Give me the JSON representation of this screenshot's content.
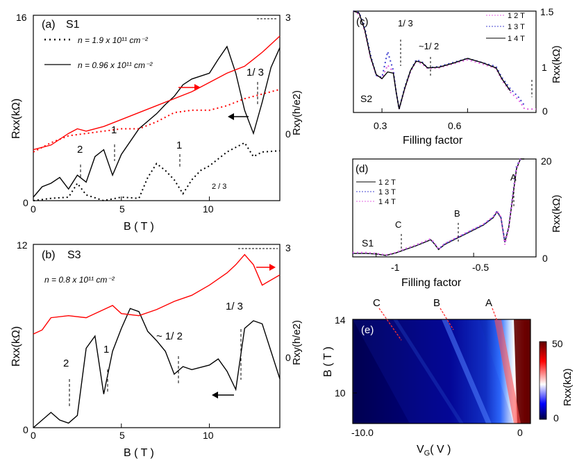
{
  "chart_data": [
    {
      "id": "a",
      "type": "line",
      "panel_label": "(a)",
      "sample": "S1",
      "xlabel": "B ( T )",
      "ylabel_left": "R<sub>xx</sub>(kΩ)",
      "ylabel_left_text": "Rxx(kΩ)",
      "ylabel_right_text": "Rxy(h/e2)",
      "xlim": [
        0,
        14
      ],
      "ylim_left": [
        0,
        16
      ],
      "ylim_right": [
        -1,
        3
      ],
      "x_ticks": [
        "0",
        "5",
        "10"
      ],
      "y_left_ticks": [
        "0",
        "16"
      ],
      "y_right_ticks": [
        "0",
        "3"
      ],
      "legend": [
        {
          "style": "dotted",
          "text": "n = 1.9 x 10¹¹ cm⁻²"
        },
        {
          "style": "solid",
          "text": "n = 0.96 x 10¹¹ cm⁻²"
        }
      ],
      "annotations": [
        "1/ 3",
        "1",
        "1",
        "2",
        "2 / 3"
      ],
      "series": [
        {
          "axis": "left",
          "color": "#000000",
          "dash": "solid",
          "x": [
            0,
            0.5,
            1.0,
            1.5,
            2.0,
            2.5,
            3.0,
            3.5,
            4.0,
            4.5,
            5.0,
            6.0,
            7.0,
            7.5,
            8.0,
            8.5,
            9.0,
            10.0,
            10.5,
            11.0,
            11.5,
            12.0,
            12.5,
            13.0,
            13.5,
            14.0
          ],
          "y": [
            0.3,
            1.2,
            1.5,
            2.0,
            1.0,
            2.2,
            1.6,
            3.8,
            4.4,
            2.2,
            4.0,
            6.2,
            7.5,
            8.3,
            9.0,
            10.0,
            10.5,
            11.0,
            12.2,
            13.3,
            11.0,
            7.8,
            5.8,
            8.5,
            11.5,
            13.2
          ]
        },
        {
          "axis": "left",
          "color": "#000000",
          "dash": "dotted",
          "x": [
            0,
            1.0,
            2.0,
            2.5,
            3.0,
            4.0,
            5.0,
            6.0,
            6.5,
            7.0,
            7.5,
            8.0,
            8.5,
            9.0,
            9.5,
            10.0,
            10.5,
            11.0,
            11.5,
            12.0,
            12.5,
            13.0,
            14.0
          ],
          "y": [
            0,
            0.2,
            0.3,
            1.5,
            0.5,
            0.0,
            0.3,
            0.2,
            2.0,
            3.2,
            2.6,
            1.8,
            0.6,
            1.8,
            2.6,
            3.0,
            3.6,
            4.2,
            4.6,
            5.0,
            3.8,
            4.2,
            4.3
          ]
        },
        {
          "axis": "right",
          "color": "#ff0000",
          "dash": "solid",
          "x": [
            0,
            1.0,
            2.0,
            2.5,
            3.0,
            4.0,
            5.0,
            6.0,
            7.0,
            8.0,
            9.0,
            10.0,
            11.0,
            12.0,
            12.5,
            13.0,
            14.0
          ],
          "y": [
            0.1,
            0.2,
            0.45,
            0.55,
            0.5,
            0.6,
            0.75,
            0.9,
            1.05,
            1.2,
            1.35,
            1.55,
            1.75,
            1.9,
            2.05,
            2.2,
            2.55
          ]
        },
        {
          "axis": "right",
          "color": "#ff0000",
          "dash": "dotted",
          "x": [
            0,
            1.0,
            2.0,
            3.0,
            4.0,
            5.0,
            6.0,
            7.0,
            8.0,
            9.0,
            10.0,
            11.0,
            12.0,
            13.0,
            14.0
          ],
          "y": [
            0.05,
            0.25,
            0.4,
            0.45,
            0.5,
            0.55,
            0.55,
            0.7,
            0.9,
            0.95,
            0.95,
            1.05,
            1.2,
            1.3,
            1.4
          ]
        }
      ]
    },
    {
      "id": "b",
      "type": "line",
      "panel_label": "(b)",
      "sample": "S3",
      "xlabel": "B ( T )",
      "ylabel_left_text": "Rxx(kΩ)",
      "ylabel_right_text": "Rxy(h/e2)",
      "xlim": [
        0,
        14
      ],
      "ylim_left": [
        0,
        12
      ],
      "ylim_right": [
        -1.5,
        3
      ],
      "x_ticks": [
        "0",
        "5",
        "10"
      ],
      "y_left_ticks": [
        "0",
        "12"
      ],
      "y_right_ticks": [
        "0",
        "3"
      ],
      "legend": [
        {
          "style": "none",
          "text": "n = 0.8 x 10¹¹ cm⁻²"
        }
      ],
      "annotations": [
        "2",
        "1",
        "~ 1/ 2",
        "1/ 3"
      ],
      "series": [
        {
          "axis": "left",
          "color": "#000000",
          "dash": "solid",
          "x": [
            0,
            0.5,
            1.0,
            1.5,
            2.0,
            2.5,
            3.0,
            3.5,
            4.0,
            4.5,
            5.0,
            5.5,
            6.0,
            6.5,
            7.0,
            7.5,
            8.0,
            8.5,
            9.0,
            10.0,
            10.5,
            11.0,
            11.5,
            12.0,
            12.5,
            13.0,
            13.5,
            14.0
          ],
          "y": [
            0,
            0.5,
            1.0,
            0.5,
            0.3,
            0.8,
            5.2,
            6.0,
            2.2,
            5.0,
            6.5,
            7.8,
            7.6,
            6.3,
            5.7,
            5.0,
            3.5,
            4.0,
            3.8,
            4.1,
            4.5,
            3.7,
            2.5,
            6.5,
            7.0,
            6.8,
            5.0,
            3.2
          ]
        },
        {
          "axis": "right",
          "color": "#ff0000",
          "dash": "solid",
          "x": [
            0,
            0.5,
            1.0,
            2.0,
            3.0,
            4.0,
            4.5,
            5.0,
            6.0,
            7.0,
            8.0,
            9.0,
            10.0,
            11.0,
            11.5,
            12.0,
            12.5,
            13.0,
            14.0
          ],
          "y": [
            0.8,
            0.9,
            1.2,
            1.25,
            1.2,
            1.4,
            1.5,
            1.3,
            1.25,
            1.4,
            1.6,
            1.75,
            2.0,
            2.3,
            2.5,
            2.75,
            2.5,
            2.0,
            2.25
          ]
        }
      ]
    },
    {
      "id": "c",
      "type": "line",
      "panel_label": "(c)",
      "sample": "S2",
      "xlabel": "Filling  factor",
      "ylabel_right_text": "Rxx(kΩ)",
      "xlim": [
        0.2,
        0.84
      ],
      "ylim_right": [
        0,
        1.5
      ],
      "x_ticks": [
        "0.3",
        "0.6"
      ],
      "y_right_ticks": [
        "0",
        "1",
        "1.5"
      ],
      "annotations": [
        "1/ 3",
        "~1/ 2"
      ],
      "series": [
        {
          "name": "1 2 T",
          "color": "#e060e0",
          "dash": "dotted",
          "x": [
            0.2,
            0.22,
            0.24,
            0.26,
            0.28,
            0.3,
            0.32,
            0.34,
            0.35,
            0.36,
            0.38,
            0.4,
            0.42,
            0.44,
            0.46,
            0.5,
            0.55,
            0.6,
            0.65,
            0.7,
            0.72,
            0.75,
            0.78,
            0.8,
            0.84
          ],
          "y": [
            1.5,
            1.45,
            1.2,
            0.8,
            0.55,
            0.5,
            0.7,
            0.6,
            0.3,
            0.05,
            0.35,
            0.6,
            0.75,
            0.72,
            0.65,
            0.66,
            0.72,
            0.78,
            0.72,
            0.65,
            0.48,
            0.3,
            0.18,
            0.05,
            0.05
          ]
        },
        {
          "name": "1 3 T",
          "color": "#4040d0",
          "dash": "dotted",
          "x": [
            0.2,
            0.22,
            0.24,
            0.26,
            0.28,
            0.3,
            0.32,
            0.34,
            0.35,
            0.36,
            0.38,
            0.4,
            0.42,
            0.44,
            0.46,
            0.5,
            0.55,
            0.6,
            0.65,
            0.7,
            0.72,
            0.75,
            0.78,
            0.8
          ],
          "y": [
            1.5,
            1.48,
            1.25,
            0.85,
            0.55,
            0.52,
            0.9,
            0.62,
            0.3,
            0.05,
            0.38,
            0.62,
            0.78,
            0.75,
            0.66,
            0.68,
            0.74,
            0.8,
            0.74,
            0.68,
            0.52,
            0.35,
            0.22,
            0.1
          ]
        },
        {
          "name": "1 4 T",
          "color": "#000000",
          "dash": "solid",
          "x": [
            0.2,
            0.22,
            0.24,
            0.26,
            0.28,
            0.3,
            0.32,
            0.34,
            0.35,
            0.36,
            0.38,
            0.4,
            0.42,
            0.44,
            0.46,
            0.5,
            0.55,
            0.6,
            0.65,
            0.7,
            0.72,
            0.75
          ],
          "y": [
            1.5,
            1.47,
            1.22,
            0.82,
            0.56,
            0.5,
            0.6,
            0.58,
            0.3,
            0.05,
            0.36,
            0.62,
            0.76,
            0.74,
            0.66,
            0.67,
            0.73,
            0.8,
            0.74,
            0.66,
            0.5,
            0.32
          ]
        }
      ]
    },
    {
      "id": "d",
      "type": "line",
      "panel_label": "(d)",
      "sample": "S1",
      "xlabel": "Filling  factor",
      "ylabel_right_text": "Rxx(kΩ)",
      "xlim": [
        -1.12,
        -0.18
      ],
      "ylim_right": [
        0,
        20
      ],
      "x_ticks": [
        "-1",
        "-0.5"
      ],
      "y_right_ticks": [
        "0",
        "20"
      ],
      "annotations": [
        "C",
        "B",
        "A"
      ],
      "series": [
        {
          "name": "1 2 T",
          "color": "#000000",
          "dash": "solid",
          "x": [
            -1.12,
            -1.05,
            -1.0,
            -0.95,
            -0.9,
            -0.85,
            -0.8,
            -0.75,
            -0.72,
            -0.7,
            -0.68,
            -0.65,
            -0.6,
            -0.55,
            -0.5,
            -0.45,
            -0.4,
            -0.38,
            -0.36,
            -0.34,
            -0.32,
            -0.3,
            -0.28,
            -0.26,
            -0.24
          ],
          "y": [
            0.7,
            0.7,
            0.6,
            0.3,
            0.8,
            1.5,
            2.2,
            3.0,
            3.5,
            2.6,
            1.5,
            2.5,
            3.5,
            4.5,
            5.5,
            6.5,
            8.0,
            9.2,
            8.0,
            3.0,
            6.0,
            12.0,
            18.0,
            20.0,
            20.0
          ]
        },
        {
          "name": "1 3 T",
          "color": "#4040d0",
          "dash": "dotted",
          "x": [
            -1.12,
            -1.05,
            -1.0,
            -0.95,
            -0.9,
            -0.85,
            -0.8,
            -0.75,
            -0.72,
            -0.7,
            -0.68,
            -0.65,
            -0.6,
            -0.55,
            -0.5,
            -0.45,
            -0.4,
            -0.38,
            -0.36,
            -0.34,
            -0.32,
            -0.3,
            -0.28,
            -0.26
          ],
          "y": [
            0.8,
            0.8,
            0.65,
            0.35,
            0.85,
            1.6,
            2.3,
            3.1,
            3.6,
            2.7,
            1.6,
            2.6,
            3.6,
            4.6,
            5.6,
            6.6,
            8.1,
            9.3,
            8.1,
            3.1,
            6.2,
            12.5,
            18.5,
            20.0
          ]
        },
        {
          "name": "1 4 T",
          "color": "#e060e0",
          "dash": "dotted",
          "x": [
            -1.12,
            -1.05,
            -1.0,
            -0.95,
            -0.9,
            -0.85,
            -0.8,
            -0.75,
            -0.72,
            -0.7,
            -0.68,
            -0.65,
            -0.6,
            -0.55,
            -0.5,
            -0.45,
            -0.4,
            -0.38,
            -0.36,
            -0.34,
            -0.32,
            -0.3,
            -0.28,
            -0.26
          ],
          "y": [
            0.9,
            0.9,
            0.7,
            0.4,
            0.9,
            1.7,
            2.4,
            3.2,
            3.7,
            2.8,
            1.5,
            2.7,
            3.7,
            4.7,
            5.7,
            6.7,
            8.2,
            9.4,
            8.2,
            2.5,
            6.0,
            12.0,
            18.0,
            20.0
          ]
        }
      ]
    },
    {
      "id": "e",
      "type": "heatmap",
      "panel_label": "(e)",
      "xlabel": "V_G( V )",
      "ylabel": "B ( T )",
      "xlim": [
        -11,
        0.5
      ],
      "ylim": [
        8,
        14
      ],
      "x_ticks": [
        "-10.0",
        "0"
      ],
      "y_ticks": [
        "10",
        "14"
      ],
      "colorbar": {
        "label": "Rxx(kΩ)",
        "ticks": [
          "0",
          "50"
        ],
        "range": [
          0,
          50
        ],
        "colors": [
          "#000040",
          "#0000ff",
          "#ffffff",
          "#ff0000",
          "#600000"
        ]
      },
      "annotations": [
        "C",
        "B",
        "A"
      ]
    }
  ]
}
